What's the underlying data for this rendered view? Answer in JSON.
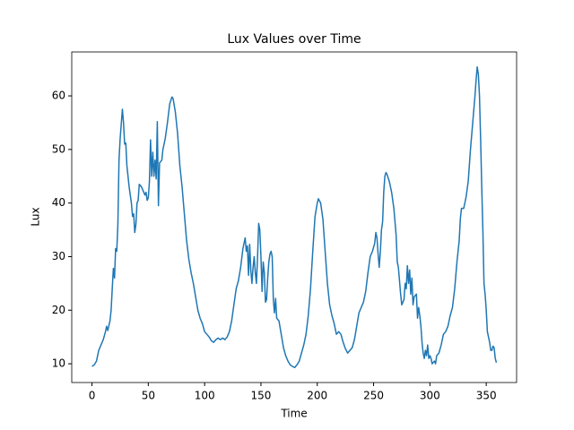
{
  "chart_data": {
    "type": "line",
    "title": "Lux Values over Time",
    "x_label": "Time",
    "y_label": "Lux",
    "x": [
      0,
      2,
      4,
      6,
      8,
      10,
      12,
      13,
      14,
      16,
      17,
      18,
      19,
      20,
      21,
      22,
      23,
      24,
      25,
      27,
      28,
      29,
      30,
      31,
      32,
      33,
      35,
      36,
      37,
      38,
      39,
      40,
      41,
      42,
      44,
      46,
      47,
      48,
      49,
      50,
      51,
      52,
      53,
      54,
      55,
      56,
      57,
      58,
      59,
      60,
      62,
      63,
      65,
      67,
      69,
      71,
      72,
      74,
      76,
      78,
      80,
      82,
      84,
      86,
      88,
      90,
      92,
      94,
      96,
      98,
      100,
      102,
      104,
      106,
      108,
      110,
      112,
      114,
      116,
      118,
      120,
      122,
      124,
      126,
      128,
      130,
      132,
      134,
      136,
      137,
      138,
      139,
      140,
      141,
      142,
      143,
      144,
      145,
      146,
      147,
      148,
      149,
      150,
      151,
      152,
      153,
      154,
      155,
      156,
      157,
      158,
      159,
      160,
      161,
      162,
      163,
      164,
      166,
      168,
      170,
      172,
      174,
      176,
      178,
      180,
      182,
      184,
      186,
      188,
      190,
      192,
      194,
      196,
      198,
      200,
      201,
      203,
      205,
      207,
      209,
      211,
      213,
      215,
      217,
      219,
      221,
      223,
      225,
      227,
      229,
      231,
      233,
      235,
      237,
      239,
      241,
      243,
      245,
      247,
      249,
      251,
      252,
      253,
      254,
      255,
      256,
      257,
      258,
      259,
      260,
      261,
      262,
      264,
      266,
      268,
      270,
      271,
      272,
      273,
      274,
      275,
      276,
      277,
      278,
      279,
      280,
      281,
      282,
      283,
      284,
      285,
      286,
      288,
      289,
      290,
      291,
      292,
      293,
      294,
      295,
      296,
      297,
      298,
      299,
      300,
      301,
      302,
      304,
      305,
      306,
      308,
      310,
      312,
      314,
      316,
      318,
      320,
      322,
      324,
      326,
      327,
      328,
      330,
      332,
      334,
      336,
      338,
      340,
      341,
      342,
      343,
      344,
      345,
      346,
      347,
      348,
      349,
      350,
      351,
      352,
      353,
      354,
      355,
      356,
      357,
      358,
      359
    ],
    "series": [
      {
        "name": "Lux",
        "color": "#1f77b4",
        "values": [
          9.5,
          9.8,
          10.5,
          12.5,
          13.5,
          14.5,
          16,
          17,
          16.2,
          18,
          20,
          24,
          27.8,
          26,
          31.5,
          31,
          36,
          48,
          52,
          57.5,
          55,
          51,
          51.2,
          47,
          45,
          43,
          40,
          37.5,
          38,
          34.5,
          36,
          40,
          40.5,
          43.5,
          43,
          42,
          41.5,
          42,
          40.5,
          41,
          44,
          51.8,
          45,
          49.5,
          45,
          48,
          44.5,
          55.2,
          39.5,
          47.5,
          48,
          50,
          52,
          55,
          58.5,
          59.8,
          59.5,
          57,
          53,
          47,
          43,
          38,
          33,
          29.5,
          27,
          25,
          22.5,
          20,
          18.5,
          17.5,
          16,
          15.5,
          15,
          14.3,
          14,
          14.5,
          14.8,
          14.5,
          14.8,
          14.5,
          15,
          16,
          18,
          21,
          24,
          25.5,
          28,
          31.5,
          33.5,
          31,
          32,
          26.5,
          32.3,
          27.5,
          25,
          28,
          30,
          27,
          25,
          30,
          36.2,
          35,
          30,
          23.5,
          29,
          27,
          21.5,
          22,
          26,
          29,
          30.5,
          31,
          30,
          22,
          19.5,
          22.2,
          18.5,
          18,
          15.5,
          13,
          11.5,
          10.5,
          9.8,
          9.5,
          9.3,
          9.8,
          10.5,
          12,
          13.5,
          15.5,
          19,
          24,
          31,
          37.5,
          40,
          40.8,
          40,
          37,
          31,
          25,
          21,
          19,
          17.5,
          15.5,
          16,
          15.5,
          14,
          12.8,
          12,
          12.5,
          13,
          14.5,
          17,
          19.5,
          20.5,
          21.5,
          23.5,
          27,
          30,
          31,
          32.5,
          34.5,
          33.5,
          30.5,
          28,
          31,
          35,
          36.5,
          42,
          45,
          45.7,
          45.3,
          44,
          42,
          39,
          34,
          29,
          28,
          25.5,
          23,
          21,
          21.5,
          22,
          25,
          24,
          28.3,
          25,
          27.5,
          23,
          26,
          21,
          22.5,
          23,
          18.5,
          20.5,
          19,
          17,
          14,
          12,
          11,
          12.5,
          11.5,
          13.5,
          11,
          11.5,
          11,
          10,
          10.5,
          10,
          11.5,
          12,
          13.5,
          15.5,
          16,
          17,
          19,
          20.5,
          24,
          29,
          33,
          37,
          39,
          39,
          41,
          44,
          50,
          55,
          60,
          63,
          65.4,
          64,
          60,
          52,
          43,
          35,
          25,
          23,
          20,
          16,
          15,
          14,
          12.5,
          12.5,
          13.3,
          13,
          11,
          10.2
        ]
      }
    ],
    "xlim": [
      -17.95,
      376.95
    ],
    "ylim": [
      6.5,
      68.2
    ],
    "xticks": [
      0,
      50,
      100,
      150,
      200,
      250,
      300,
      350
    ],
    "yticks": [
      10,
      20,
      30,
      40,
      50,
      60
    ]
  }
}
